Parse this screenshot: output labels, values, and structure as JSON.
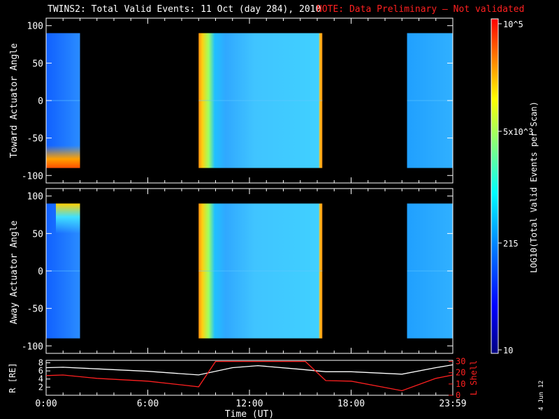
{
  "title": {
    "main": "TWINS2: Total Valid Events: 11 Oct (day 284), 2010",
    "note": "NOTE: Data Preliminary — Not validated"
  },
  "date_stamp": "4 Jun 12",
  "colorbar": {
    "label": "LOG10(Total Valid Events per Scan)",
    "ticks": [
      "10",
      "215",
      "5x10^3",
      "10^5"
    ],
    "colors": [
      "#000080",
      "#0000ff",
      "#0080ff",
      "#00ffff",
      "#80ff80",
      "#ffff00",
      "#ff8000",
      "#ff0000"
    ]
  },
  "chart_data": [
    {
      "type": "heatmap",
      "ylabel": "Toward Actuator Angle",
      "ylim": [
        -110,
        110
      ],
      "yticks": [
        "100",
        "50",
        "0",
        "-50",
        "-100"
      ],
      "x_range_hours": [
        0,
        24
      ],
      "data_blocks": [
        {
          "start_h": 0.0,
          "end_h": 2.0
        },
        {
          "start_h": 9.0,
          "end_h": 16.3
        },
        {
          "start_h": 21.3,
          "end_h": 24.0
        }
      ]
    },
    {
      "type": "heatmap",
      "ylabel": "Away Actuator Angle",
      "ylim": [
        -110,
        110
      ],
      "yticks": [
        "100",
        "50",
        "0",
        "-50",
        "-100"
      ],
      "x_range_hours": [
        0,
        24
      ],
      "data_blocks": [
        {
          "start_h": 0.0,
          "end_h": 2.0
        },
        {
          "start_h": 9.0,
          "end_h": 16.3
        },
        {
          "start_h": 21.3,
          "end_h": 24.0
        }
      ]
    },
    {
      "type": "line",
      "ylabel_left": "R [RE]",
      "ylabel_right": "L Shell",
      "yticks_left": [
        "8",
        "6",
        "4",
        "2"
      ],
      "yticks_right": [
        "30",
        "20",
        "10",
        "0"
      ],
      "xlabel": "Time (UT)",
      "xticks": [
        "0:00",
        "6:00",
        "12:00",
        "18:00",
        "23:59"
      ],
      "series": [
        {
          "name": "R",
          "color": "#ffffff",
          "x": [
            0,
            1,
            3,
            6,
            9,
            11,
            12.5,
            15,
            16.5,
            18,
            21,
            23,
            24
          ],
          "y": [
            6.8,
            6.9,
            6.5,
            5.9,
            5.0,
            6.8,
            7.3,
            6.4,
            5.8,
            5.8,
            5.2,
            6.8,
            7.5
          ]
        },
        {
          "name": "L Shell",
          "color": "#ff2020",
          "x": [
            0,
            1,
            3,
            6,
            9,
            10,
            15.3,
            16.5,
            18,
            21,
            23,
            24
          ],
          "y": [
            17.5,
            18,
            15,
            12.5,
            7.5,
            30,
            30,
            13,
            12.5,
            4,
            15,
            18
          ]
        }
      ]
    }
  ]
}
